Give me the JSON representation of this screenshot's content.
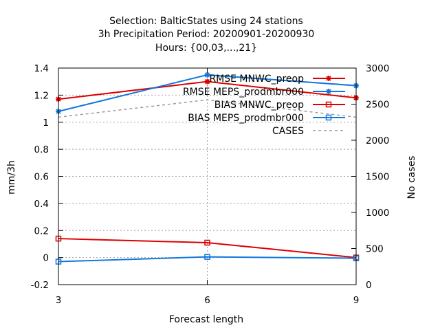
{
  "chart_data": {
    "type": "line",
    "title_lines": [
      "Selection: BalticStates using    24 stations",
      "3h Precipitation    Period: 20200901-20200930",
      "Hours: {00,03,...,21}"
    ],
    "xlabel": "Forecast length",
    "ylabel": "mm/3h",
    "y2label": "No cases",
    "x": [
      3,
      6,
      9
    ],
    "xlim": [
      3,
      9
    ],
    "x_ticks": [
      "3",
      "6",
      "9"
    ],
    "ylim": [
      -0.2,
      1.4
    ],
    "y_ticks": [
      "-0.2",
      "0",
      "0.2",
      "0.4",
      "0.6",
      "0.8",
      "1",
      "1.2",
      "1.4"
    ],
    "y2lim": [
      0,
      3000
    ],
    "y2_ticks": [
      "0",
      "500",
      "1000",
      "1500",
      "2000",
      "2500",
      "3000"
    ],
    "grid": true,
    "legend_position": "top-right",
    "series": [
      {
        "name": "RMSE MNWC_preop",
        "axis": "y",
        "color": "#dd0000",
        "marker": "star",
        "dash": "solid",
        "values": [
          1.17,
          1.3,
          1.18
        ]
      },
      {
        "name": "RMSE MEPS_prodmbr000",
        "axis": "y",
        "color": "#1177dd",
        "marker": "star",
        "dash": "solid",
        "values": [
          1.08,
          1.35,
          1.27
        ]
      },
      {
        "name": "BIAS MNWC_preop",
        "axis": "y",
        "color": "#dd0000",
        "marker": "square",
        "dash": "solid",
        "values": [
          0.14,
          0.11,
          0.0
        ]
      },
      {
        "name": "BIAS MEPS_prodmbr000",
        "axis": "y",
        "color": "#1177dd",
        "marker": "square",
        "dash": "solid",
        "values": [
          -0.03,
          0.005,
          -0.005
        ]
      },
      {
        "name": "CASES",
        "axis": "y2",
        "color": "#999999",
        "marker": "none",
        "dash": "dashed",
        "values": [
          2320,
          2560,
          2320
        ]
      }
    ]
  }
}
